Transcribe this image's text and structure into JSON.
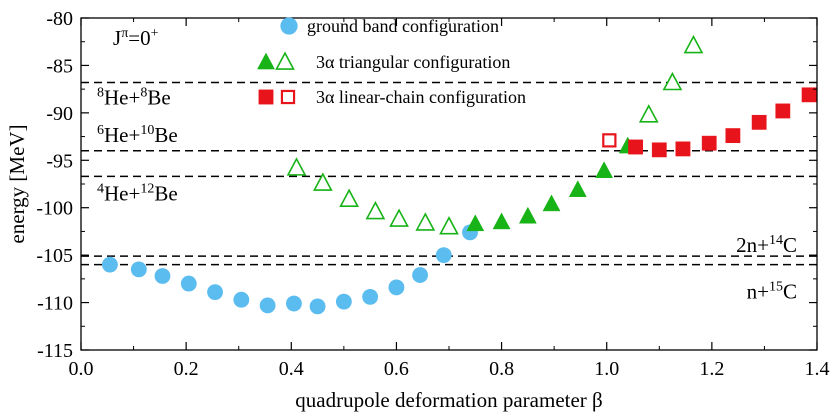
{
  "chart_data": {
    "type": "scatter",
    "title": "",
    "xlabel": "quadrupole deformation parameter β",
    "ylabel": "energy [MeV]",
    "xlim": [
      0.0,
      1.4
    ],
    "ylim": [
      -115,
      -80
    ],
    "xticks": [
      0.0,
      0.2,
      0.4,
      0.6,
      0.8,
      1.0,
      1.2,
      1.4
    ],
    "xtick_labels": [
      "0.0",
      "0.2",
      "0.4",
      "0.6",
      "0.8",
      "1.0",
      "1.2",
      "1.4"
    ],
    "yticks": [
      -115,
      -110,
      -105,
      -100,
      -95,
      -90,
      -85,
      -80
    ],
    "ytick_labels": [
      "-115",
      "-110",
      "-105",
      "-100",
      "-95",
      "-90",
      "-85",
      "-80"
    ],
    "grid": false,
    "legend": {
      "placement": "top-center",
      "entries": [
        {
          "label": "ground band configuration",
          "marker": "circle",
          "color": "#5bbcf0"
        },
        {
          "label": "3α triangular configuration",
          "marker": "triangle",
          "color": "#17b317"
        },
        {
          "label": "3α linear-chain configuration",
          "marker": "square",
          "color": "#e8141b"
        }
      ]
    },
    "annotations": [
      {
        "base": "J",
        "sup": "π",
        "tail": "=0",
        "sup2": "+"
      }
    ],
    "thresholds": [
      {
        "y": -86.8,
        "label_parts": [
          "8",
          "He+",
          "8",
          "Be"
        ]
      },
      {
        "y": -94.0,
        "label_parts": [
          "6",
          "He+",
          "10",
          "Be"
        ]
      },
      {
        "y": -96.7,
        "label_parts": [
          "4",
          "He+",
          "12",
          "Be"
        ]
      },
      {
        "y": -105.1,
        "label_parts": [
          "",
          "2n+",
          "14",
          "C"
        ]
      },
      {
        "y": -106.0,
        "label_parts": [
          "",
          "n+",
          "15",
          "C"
        ]
      }
    ],
    "series": [
      {
        "name": "ground band configuration",
        "marker": "circle",
        "filled": true,
        "color": "#5bbcf0",
        "x": [
          0.055,
          0.11,
          0.155,
          0.205,
          0.255,
          0.305,
          0.355,
          0.405,
          0.45,
          0.5,
          0.55,
          0.6,
          0.645,
          0.69,
          0.74
        ],
        "y": [
          -106.0,
          -106.5,
          -107.2,
          -108.0,
          -108.9,
          -109.7,
          -110.3,
          -110.1,
          -110.4,
          -109.9,
          -109.4,
          -108.4,
          -107.1,
          -105.0,
          -102.6
        ]
      },
      {
        "name": "3α triangular configuration (filled)",
        "marker": "triangle",
        "filled": true,
        "color": "#17b317",
        "x": [
          0.75,
          0.8,
          0.85,
          0.895,
          0.945,
          0.995,
          1.04
        ],
        "y": [
          -101.8,
          -101.6,
          -101.0,
          -99.7,
          -98.2,
          -96.2,
          -93.6
        ]
      },
      {
        "name": "3α triangular configuration (open)",
        "marker": "triangle",
        "filled": false,
        "color": "#17b317",
        "x": [
          0.41,
          0.46,
          0.51,
          0.56,
          0.605,
          0.655,
          0.7,
          1.08,
          1.125,
          1.165
        ],
        "y": [
          -95.9,
          -97.5,
          -99.2,
          -100.5,
          -101.3,
          -101.7,
          -102.1,
          -90.3,
          -86.9,
          -83.0
        ]
      },
      {
        "name": "3α linear-chain configuration (filled)",
        "marker": "square",
        "filled": true,
        "color": "#e8141b",
        "x": [
          1.055,
          1.1,
          1.145,
          1.195,
          1.24,
          1.29,
          1.335,
          1.385
        ],
        "y": [
          -93.6,
          -93.9,
          -93.8,
          -93.2,
          -92.4,
          -91.0,
          -89.8,
          -88.1
        ]
      },
      {
        "name": "3α linear-chain configuration (open)",
        "marker": "square",
        "filled": false,
        "color": "#e8141b",
        "x": [
          1.005
        ],
        "y": [
          -92.9
        ]
      }
    ]
  }
}
